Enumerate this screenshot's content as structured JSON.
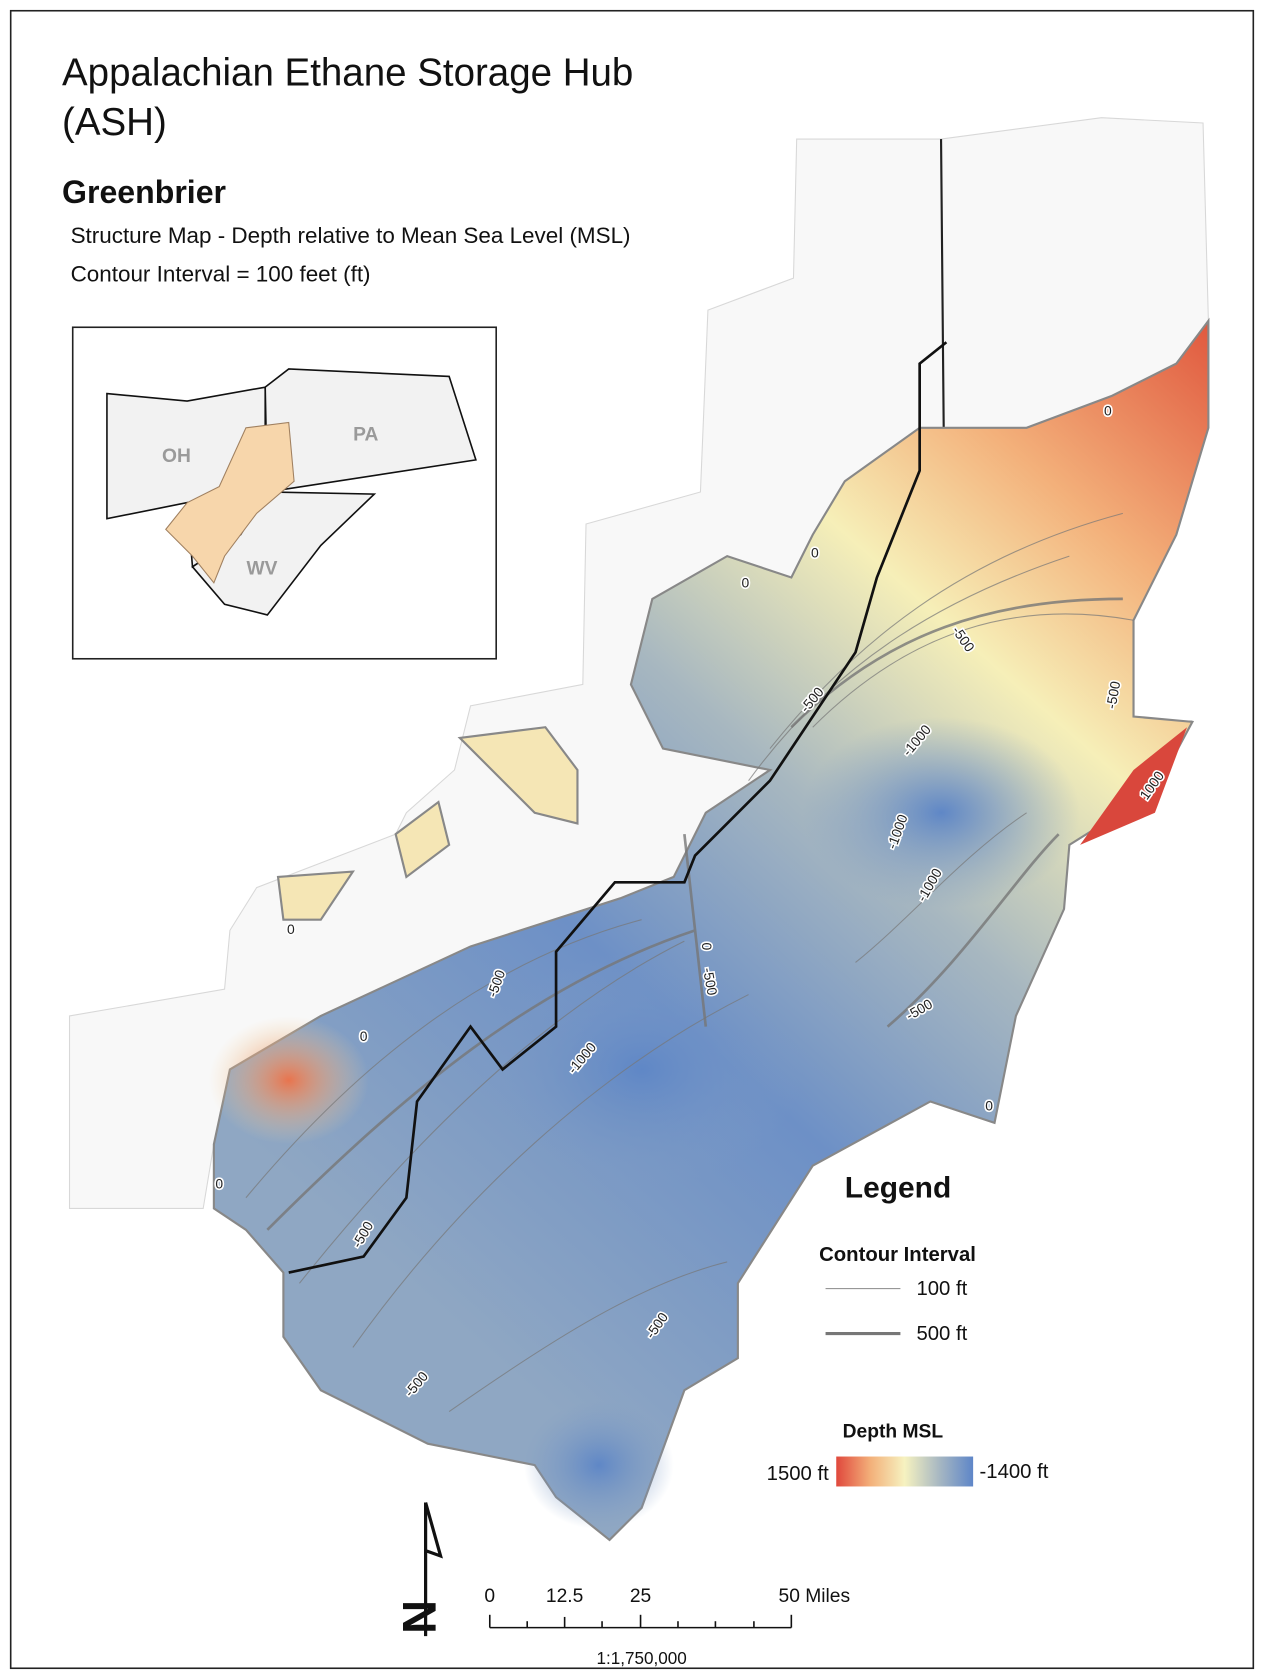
{
  "header": {
    "title_line1": "Appalachian Ethane Storage Hub",
    "title_line2": "(ASH)",
    "formation": "Greenbrier",
    "description": [
      "Structure Map - Depth relative to Mean Sea Level (MSL)",
      "Contour Interval = 100 feet (ft)"
    ]
  },
  "inset": {
    "labels": [
      "OH",
      "PA",
      "WV"
    ]
  },
  "contour_labels": [
    "0",
    "0",
    "0",
    "-500",
    "-500",
    "-500",
    "-1000",
    "1000",
    "-1000",
    "-1000",
    "0",
    "-500",
    "-500",
    "0",
    "-1000",
    "-500",
    "0",
    "0",
    "0",
    "-500",
    "-500",
    "-500"
  ],
  "legend": {
    "title": "Legend",
    "contour_heading": "Contour Interval",
    "contour_items": [
      "100 ft",
      "500 ft"
    ],
    "depth_heading": "Depth MSL",
    "depth_max": "1500 ft",
    "depth_min": "-1400 ft"
  },
  "scale_bar": {
    "ticks": [
      "0",
      "12.5",
      "25",
      "50 Miles"
    ],
    "ratio": "1:1,750,000"
  },
  "north_label": "N"
}
